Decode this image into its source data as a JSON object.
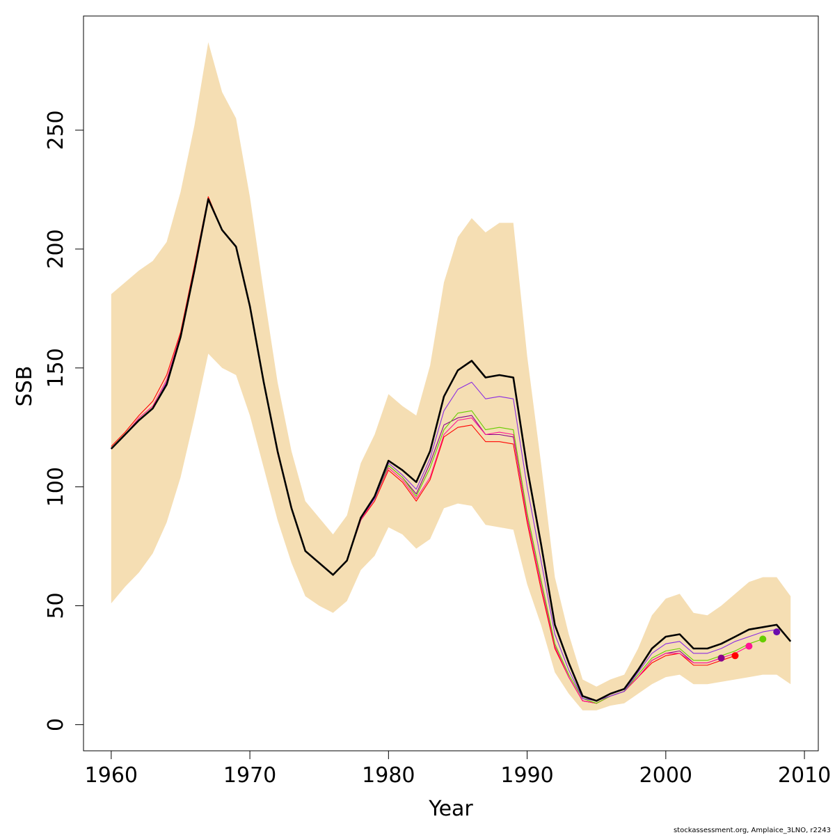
{
  "chart_data": {
    "type": "line",
    "title": "",
    "xlabel": "Year",
    "ylabel": "SSB",
    "xlim": [
      1958,
      2011
    ],
    "ylim": [
      -11,
      298
    ],
    "x_ticks": [
      1960,
      1970,
      1980,
      1990,
      2000,
      2010
    ],
    "y_ticks": [
      0,
      50,
      100,
      150,
      200,
      250
    ],
    "grid": false,
    "legend": "none",
    "footer": "stockassessment.org, Amplaice_3LNO, r2243",
    "band": {
      "color": "#F5DEB3",
      "x": [
        1960,
        1961,
        1962,
        1963,
        1964,
        1965,
        1966,
        1967,
        1968,
        1969,
        1970,
        1971,
        1972,
        1973,
        1974,
        1975,
        1976,
        1977,
        1978,
        1979,
        1980,
        1981,
        1982,
        1983,
        1984,
        1985,
        1986,
        1987,
        1988,
        1989,
        1990,
        1991,
        1992,
        1993,
        1994,
        1995,
        1996,
        1997,
        1998,
        1999,
        2000,
        2001,
        2002,
        2003,
        2004,
        2005,
        2006,
        2007,
        2008,
        2009
      ],
      "upper": [
        181,
        186,
        191,
        195,
        203,
        224,
        252,
        287,
        266,
        255,
        222,
        182,
        144,
        115,
        94,
        87,
        80,
        88,
        110,
        122,
        139,
        134,
        130,
        151,
        186,
        205,
        213,
        207,
        211,
        211,
        155,
        110,
        62,
        38,
        19,
        16,
        19,
        21,
        32,
        46,
        53,
        55,
        47,
        46,
        50,
        55,
        60,
        62,
        62,
        54
      ],
      "lower": [
        51,
        58,
        64,
        72,
        85,
        104,
        129,
        156,
        150,
        147,
        130,
        108,
        86,
        68,
        54,
        50,
        47,
        52,
        65,
        71,
        83,
        80,
        74,
        78,
        91,
        93,
        92,
        84,
        83,
        82,
        59,
        42,
        22,
        13,
        6,
        6,
        8,
        9,
        13,
        17,
        20,
        21,
        17,
        17,
        18,
        19,
        20,
        21,
        21,
        17
      ]
    },
    "series": [
      {
        "color": "#000000",
        "width": 2.6,
        "x": [
          1960,
          1961,
          1962,
          1963,
          1964,
          1965,
          1966,
          1967,
          1968,
          1969,
          1970,
          1971,
          1972,
          1973,
          1974,
          1975,
          1976,
          1977,
          1978,
          1979,
          1980,
          1981,
          1982,
          1983,
          1984,
          1985,
          1986,
          1987,
          1988,
          1989,
          1990,
          1991,
          1992,
          1993,
          1994,
          1995,
          1996,
          1997,
          1998,
          1999,
          2000,
          2001,
          2002,
          2003,
          2004,
          2005,
          2006,
          2007,
          2008,
          2009
        ],
        "values": [
          116,
          122,
          128,
          133,
          143,
          163,
          191,
          221,
          208,
          201,
          176,
          144,
          115,
          91,
          73,
          68,
          63,
          69,
          87,
          96,
          111,
          107,
          102,
          115,
          138,
          149,
          153,
          146,
          147,
          146,
          108,
          76,
          42,
          26,
          12,
          10,
          13,
          15,
          23,
          32,
          37,
          38,
          32,
          32,
          34,
          37,
          40,
          41,
          42,
          35
        ]
      },
      {
        "color": "#8B008B",
        "width": 1.1,
        "x": [
          1960,
          1961,
          1962,
          1963,
          1964,
          1965,
          1966,
          1967,
          1968,
          1969,
          1970,
          1971,
          1972,
          1973,
          1974,
          1975,
          1976,
          1977,
          1978,
          1979,
          1980,
          1981,
          1982,
          1983,
          1984,
          1985,
          1986,
          1987,
          1988,
          1989,
          1990,
          1991,
          1992,
          1993,
          1994,
          1995,
          1996,
          1997,
          1998,
          1999,
          2000,
          2001,
          2002,
          2003,
          2004
        ],
        "values": [
          116,
          122,
          128,
          133,
          144,
          163,
          191,
          221,
          208,
          201,
          176,
          144,
          115,
          91,
          73,
          68,
          63,
          69,
          87,
          95,
          109,
          104,
          97,
          110,
          126,
          129,
          130,
          122,
          122,
          121,
          87,
          59,
          33,
          20,
          10,
          9,
          12,
          14,
          20,
          27,
          30,
          31,
          26,
          26,
          28
        ]
      },
      {
        "color": "#FF0000",
        "width": 1.1,
        "x": [
          1960,
          1961,
          1962,
          1963,
          1964,
          1965,
          1966,
          1967,
          1968,
          1969,
          1970,
          1971,
          1972,
          1973,
          1974,
          1975,
          1976,
          1977,
          1978,
          1979,
          1980,
          1981,
          1982,
          1983,
          1984,
          1985,
          1986,
          1987,
          1988,
          1989,
          1990,
          1991,
          1992,
          1993,
          1994,
          1995,
          1996,
          1997,
          1998,
          1999,
          2000,
          2001,
          2002,
          2003,
          2004,
          2005
        ],
        "values": [
          117,
          123,
          130,
          136,
          147,
          165,
          193,
          222,
          208,
          201,
          176,
          144,
          114,
          91,
          73,
          68,
          63,
          69,
          86,
          94,
          107,
          102,
          94,
          103,
          121,
          125,
          126,
          119,
          119,
          118,
          85,
          57,
          32,
          20,
          10,
          9,
          12,
          14,
          20,
          26,
          29,
          30,
          25,
          25,
          27,
          29
        ]
      },
      {
        "color": "#FF1493",
        "width": 1.1,
        "x": [
          1960,
          1961,
          1962,
          1963,
          1964,
          1965,
          1966,
          1967,
          1968,
          1969,
          1970,
          1971,
          1972,
          1973,
          1974,
          1975,
          1976,
          1977,
          1978,
          1979,
          1980,
          1981,
          1982,
          1983,
          1984,
          1985,
          1986,
          1987,
          1988,
          1989,
          1990,
          1991,
          1992,
          1993,
          1994,
          1995,
          1996,
          1997,
          1998,
          1999,
          2000,
          2001,
          2002,
          2003,
          2004,
          2005,
          2006
        ],
        "values": [
          116,
          122,
          129,
          134,
          145,
          164,
          192,
          221,
          208,
          201,
          176,
          144,
          115,
          91,
          73,
          68,
          63,
          69,
          86,
          95,
          108,
          103,
          95,
          104,
          122,
          128,
          129,
          122,
          123,
          122,
          87,
          59,
          33,
          20,
          10,
          9,
          12,
          14,
          20,
          27,
          30,
          30,
          26,
          26,
          28,
          30,
          33
        ]
      },
      {
        "color": "#66CD00",
        "width": 1.1,
        "x": [
          1960,
          1961,
          1962,
          1963,
          1964,
          1965,
          1966,
          1967,
          1968,
          1969,
          1970,
          1971,
          1972,
          1973,
          1974,
          1975,
          1976,
          1977,
          1978,
          1979,
          1980,
          1981,
          1982,
          1983,
          1984,
          1985,
          1986,
          1987,
          1988,
          1989,
          1990,
          1991,
          1992,
          1993,
          1994,
          1995,
          1996,
          1997,
          1998,
          1999,
          2000,
          2001,
          2002,
          2003,
          2004,
          2005,
          2006,
          2007
        ],
        "values": [
          116,
          122,
          128,
          133,
          144,
          163,
          191,
          221,
          208,
          201,
          176,
          144,
          115,
          91,
          73,
          68,
          63,
          69,
          87,
          95,
          109,
          104,
          96,
          108,
          124,
          131,
          132,
          124,
          125,
          124,
          89,
          61,
          34,
          21,
          11,
          9,
          12,
          14,
          21,
          28,
          31,
          32,
          27,
          27,
          29,
          31,
          34,
          36
        ]
      },
      {
        "color": "#8A2BE2",
        "width": 1.1,
        "x": [
          1960,
          1961,
          1962,
          1963,
          1964,
          1965,
          1966,
          1967,
          1968,
          1969,
          1970,
          1971,
          1972,
          1973,
          1974,
          1975,
          1976,
          1977,
          1978,
          1979,
          1980,
          1981,
          1982,
          1983,
          1984,
          1985,
          1986,
          1987,
          1988,
          1989,
          1990,
          1991,
          1992,
          1993,
          1994,
          1995,
          1996,
          1997,
          1998,
          1999,
          2000,
          2001,
          2002,
          2003,
          2004,
          2005,
          2006,
          2007,
          2008
        ],
        "values": [
          116,
          122,
          128,
          133,
          144,
          163,
          191,
          221,
          208,
          201,
          176,
          144,
          115,
          91,
          73,
          68,
          63,
          69,
          87,
          95,
          110,
          105,
          99,
          112,
          132,
          141,
          144,
          137,
          138,
          137,
          100,
          69,
          38,
          23,
          11,
          10,
          12,
          14,
          22,
          30,
          34,
          35,
          30,
          30,
          32,
          35,
          37,
          39,
          40
        ]
      }
    ],
    "points": [
      {
        "x": 2004,
        "y": 28,
        "color": "#8B008B"
      },
      {
        "x": 2005,
        "y": 29,
        "color": "#FF0000"
      },
      {
        "x": 2006,
        "y": 33,
        "color": "#FF1493"
      },
      {
        "x": 2007,
        "y": 36,
        "color": "#66CD00"
      },
      {
        "x": 2008,
        "y": 39,
        "color": "#6A0DAD"
      }
    ]
  }
}
